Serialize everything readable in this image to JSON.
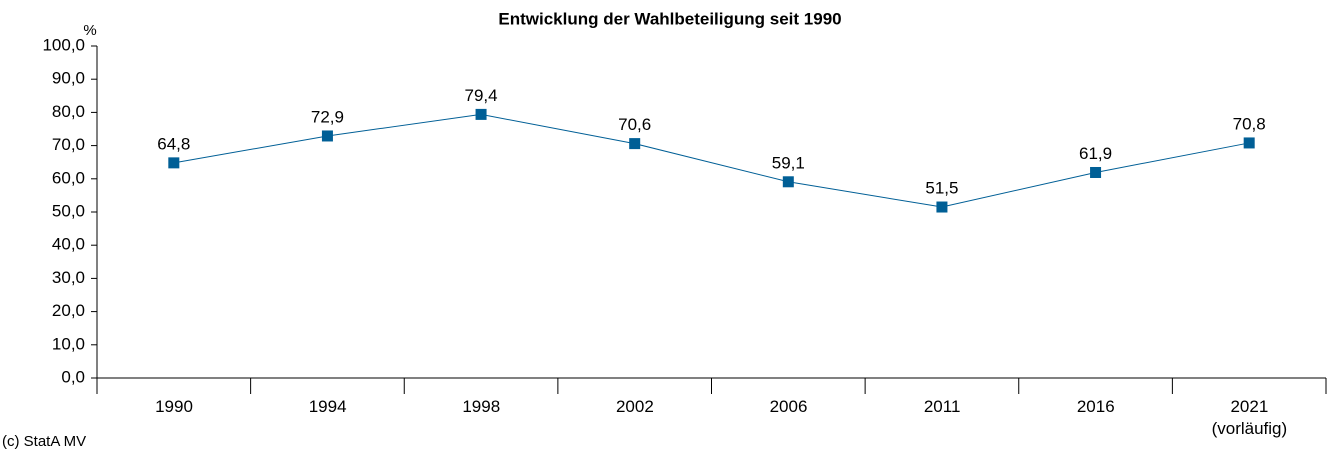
{
  "chart_data": {
    "type": "line",
    "title": "Entwicklung der Wahlbeteiligung seit 1990",
    "y_label": "%",
    "source": "(c) StatA MV",
    "categories": [
      "1990",
      "1994",
      "1998",
      "2002",
      "2006",
      "2011",
      "2016",
      "2021\n(vorläufig)"
    ],
    "series": [
      {
        "name": "Wahlbeteiligung",
        "color": "#005f96",
        "values": [
          64.8,
          72.9,
          79.4,
          70.6,
          59.1,
          51.5,
          61.9,
          70.8
        ],
        "value_labels": [
          "64,8",
          "72,9",
          "79,4",
          "70,6",
          "59,1",
          "51,5",
          "61,9",
          "70,8"
        ]
      }
    ],
    "ylim": [
      0,
      100
    ],
    "yticks": [
      {
        "value": 0,
        "label": "0,0"
      },
      {
        "value": 10,
        "label": "10,0"
      },
      {
        "value": 20,
        "label": "20,0"
      },
      {
        "value": 30,
        "label": "30,0"
      },
      {
        "value": 40,
        "label": "40,0"
      },
      {
        "value": 50,
        "label": "50,0"
      },
      {
        "value": 60,
        "label": "60,0"
      },
      {
        "value": 70,
        "label": "70,0"
      },
      {
        "value": 80,
        "label": "80,0"
      },
      {
        "value": 90,
        "label": "90,0"
      },
      {
        "value": 100,
        "label": "100,0"
      }
    ],
    "grid": false
  }
}
